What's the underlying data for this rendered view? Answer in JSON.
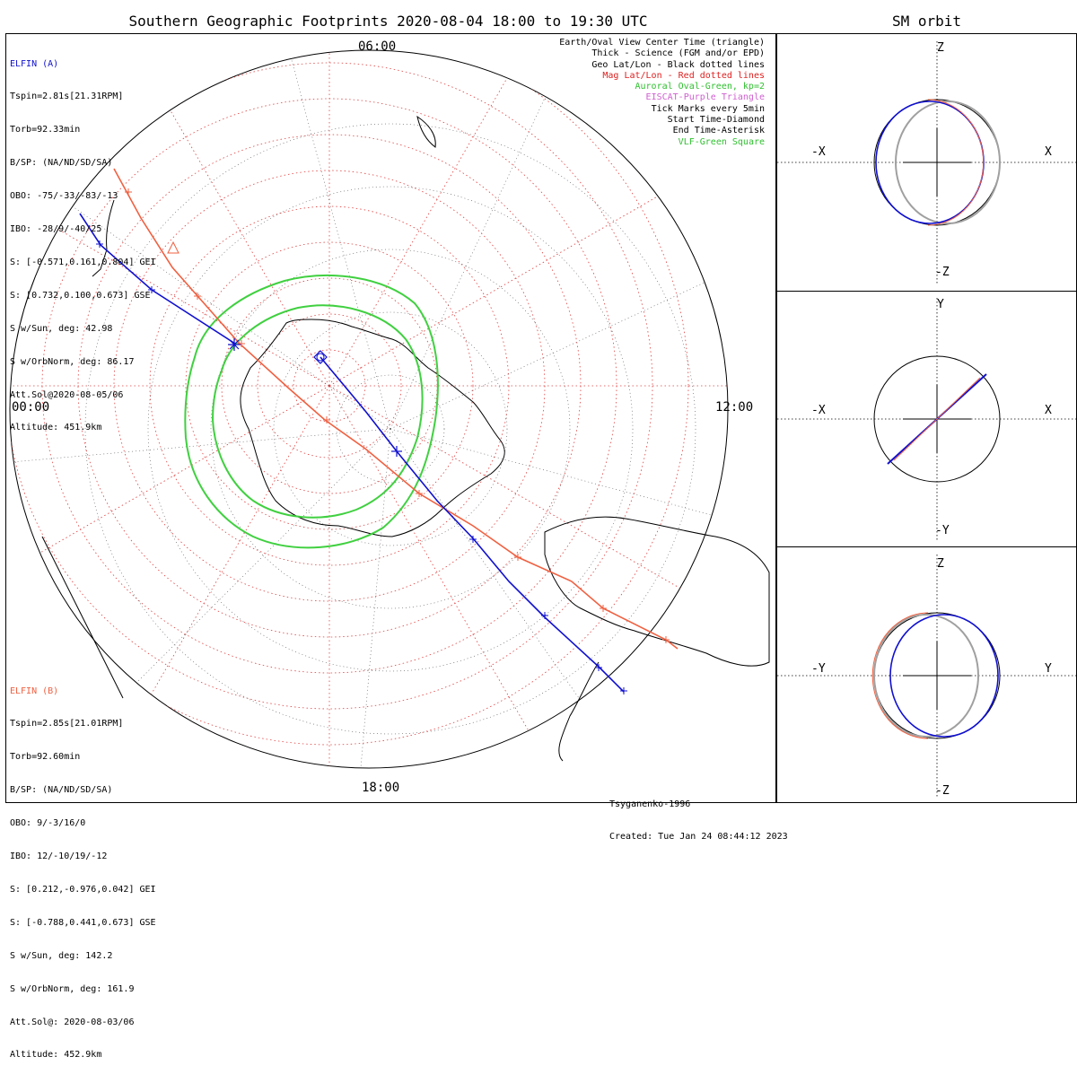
{
  "titles": {
    "main": "Southern Geographic Footprints 2020-08-04 18:00 to 19:30 UTC",
    "orbit": "SM orbit"
  },
  "colors": {
    "elfin_a": "#1010d0",
    "elfin_b": "#f06040",
    "geo_grid": "#000000",
    "mag_grid": "#e04040",
    "auroral_oval": "#40d040",
    "eiscat": "#d060d0",
    "vlf": "#40c040",
    "orbit_earth_path": "#a0a0a0"
  },
  "elfin_a": {
    "name": "ELFIN (A)",
    "lines": [
      "Tspin=2.81s[21.31RPM]",
      "Torb=92.33min",
      "B/SP: (NA/ND/SD/SA)",
      "OBO: -75/-33/-83/-13",
      "IBO: -28/9/-40/25",
      "S: [-0.571,0.161,0.804] GEI",
      "S: [0.732,0.100,0.673] GSE",
      "S w/Sun, deg: 42.98",
      "S w/OrbNorm, deg: 86.17",
      "Att.Sol@2020-08-05/06",
      "Altitude: 451.9km"
    ]
  },
  "elfin_b": {
    "name": "ELFIN (B)",
    "lines": [
      "Tspin=2.85s[21.01RPM]",
      "Torb=92.60min",
      "B/SP: (NA/ND/SD/SA)",
      "OBO: 9/-3/16/0",
      "IBO: 12/-10/19/-12",
      "S: [0.212,-0.976,0.042] GEI",
      "S: [-0.788,0.441,0.673] GSE",
      "S w/Sun, deg: 142.2",
      "S w/OrbNorm, deg: 161.9",
      "Att.Sol@: 2020-08-03/06",
      "Altitude: 452.9km"
    ]
  },
  "legend": [
    {
      "text": "Earth/Oval View Center Time (triangle)",
      "color": "#000000"
    },
    {
      "text": "Thick - Science (FGM and/or EPD)",
      "color": "#000000"
    },
    {
      "text": "Geo Lat/Lon - Black dotted lines",
      "color": "#000000"
    },
    {
      "text": "Mag Lat/Lon - Red dotted lines",
      "color": "#e02020"
    },
    {
      "text": "Auroral Oval-Green, kp=2",
      "color": "#30c030"
    },
    {
      "text": "EISCAT-Purple Triangle",
      "color": "#d060d0"
    },
    {
      "text": "Tick Marks every 5min",
      "color": "#000000"
    },
    {
      "text": "Start Time-Diamond",
      "color": "#000000"
    },
    {
      "text": "End Time-Asterisk",
      "color": "#000000"
    },
    {
      "text": "VLF-Green Square",
      "color": "#30c030"
    }
  ],
  "local_times": {
    "top": "06:00",
    "left": "00:00",
    "right": "12:00",
    "bottom": "18:00"
  },
  "footer": {
    "model": "Tsyganenko-1996",
    "created": "Created: Tue Jan 24 08:44:12 2023"
  },
  "orbit_panels": [
    {
      "up": "Z",
      "down": "-Z",
      "left": "-X",
      "right": "X"
    },
    {
      "up": "Y",
      "down": "-Y",
      "left": "-X",
      "right": "X"
    },
    {
      "up": "Z",
      "down": "-Z",
      "left": "-Y",
      "right": "Y"
    }
  ]
}
